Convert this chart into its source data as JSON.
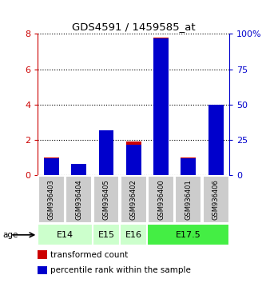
{
  "title": "GDS4591 / 1459585_at",
  "samples": [
    "GSM936403",
    "GSM936404",
    "GSM936405",
    "GSM936402",
    "GSM936400",
    "GSM936401",
    "GSM936406"
  ],
  "transformed_count": [
    1.0,
    0.5,
    2.4,
    1.9,
    7.8,
    1.0,
    3.5
  ],
  "percentile_rank": [
    12,
    8,
    32,
    22,
    97,
    12,
    50
  ],
  "red_color": "#cc0000",
  "blue_color": "#0000cc",
  "ylim_left": [
    0,
    8
  ],
  "ylim_right": [
    0,
    100
  ],
  "yticks_left": [
    0,
    2,
    4,
    6,
    8
  ],
  "yticks_right": [
    0,
    25,
    50,
    75,
    100
  ],
  "age_groups": [
    {
      "label": "E14",
      "start": 0,
      "end": 2,
      "color": "#ccffcc"
    },
    {
      "label": "E15",
      "start": 2,
      "end": 3,
      "color": "#ccffcc"
    },
    {
      "label": "E16",
      "start": 3,
      "end": 4,
      "color": "#ccffcc"
    },
    {
      "label": "E17.5",
      "start": 4,
      "end": 7,
      "color": "#44ee44"
    }
  ],
  "bar_width": 0.55,
  "sample_bg_color": "#cccccc",
  "legend_items": [
    {
      "label": "transformed count",
      "color": "#cc0000"
    },
    {
      "label": "percentile rank within the sample",
      "color": "#0000cc"
    }
  ]
}
